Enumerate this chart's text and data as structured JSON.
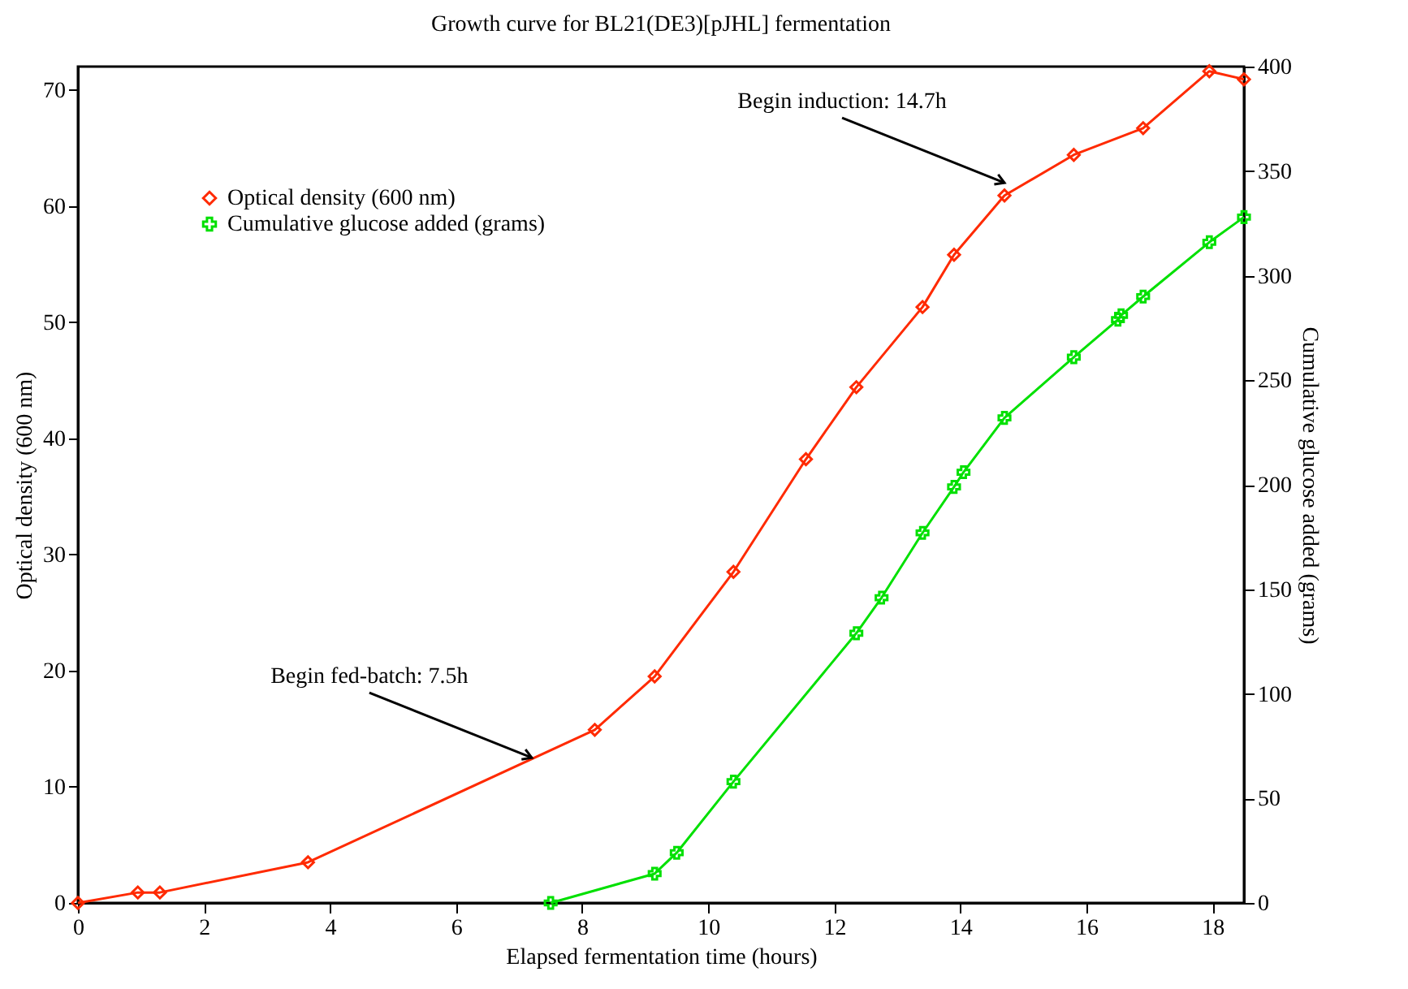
{
  "chart_data": {
    "type": "line",
    "title": "Growth curve for BL21(DE3)[pJHL] fermentation",
    "xlabel": "Elapsed fermentation time (hours)",
    "ylabel": "Optical density (600 nm)",
    "y2label": "Cumulative glucose added (grams)",
    "xlim": [
      0,
      18.5
    ],
    "xticks": [
      0,
      2,
      4,
      6,
      8,
      10,
      12,
      14,
      16,
      18
    ],
    "ylim": [
      0,
      72
    ],
    "yticks": [
      0,
      10,
      20,
      30,
      40,
      50,
      60,
      70
    ],
    "y2lim": [
      0,
      400
    ],
    "y2ticks": [
      0,
      50,
      100,
      150,
      200,
      250,
      300,
      350,
      400
    ],
    "legend": "top left",
    "grid": false,
    "annotations": [
      {
        "text": "Begin fed-batch: 7.5h",
        "x": 7.2,
        "y": 12.5
      },
      {
        "text": "Begin induction: 14.7h",
        "x": 14.7,
        "y": 62
      }
    ],
    "series": [
      {
        "name": "Optical density (600 nm)",
        "color": "#ff2a00",
        "marker": "diamond",
        "x": [
          0,
          0.95,
          1.3,
          3.65,
          8.2,
          9.15,
          10.4,
          11.55,
          12.35,
          13.4,
          13.9,
          14.7,
          15.8,
          16.9,
          17.95,
          18.5
        ],
        "values": [
          0,
          0.9,
          0.9,
          3.5,
          14.9,
          19.5,
          28.5,
          38.2,
          44.4,
          51.3,
          55.8,
          60.9,
          64.4,
          66.7,
          71.6,
          70.9
        ]
      },
      {
        "name": "Cumulative glucose added (grams)",
        "color": "#00e000",
        "marker": "cross",
        "axis": "y2",
        "x": [
          7.5,
          9.15,
          9.5,
          10.4,
          12.35,
          12.75,
          13.4,
          13.9,
          14.05,
          14.7,
          15.8,
          16.5,
          16.55,
          16.9,
          17.95,
          18.5
        ],
        "values": [
          0,
          14,
          24,
          58,
          129,
          146,
          177,
          199,
          206,
          232,
          261,
          279,
          281,
          290,
          316,
          328
        ]
      }
    ]
  }
}
